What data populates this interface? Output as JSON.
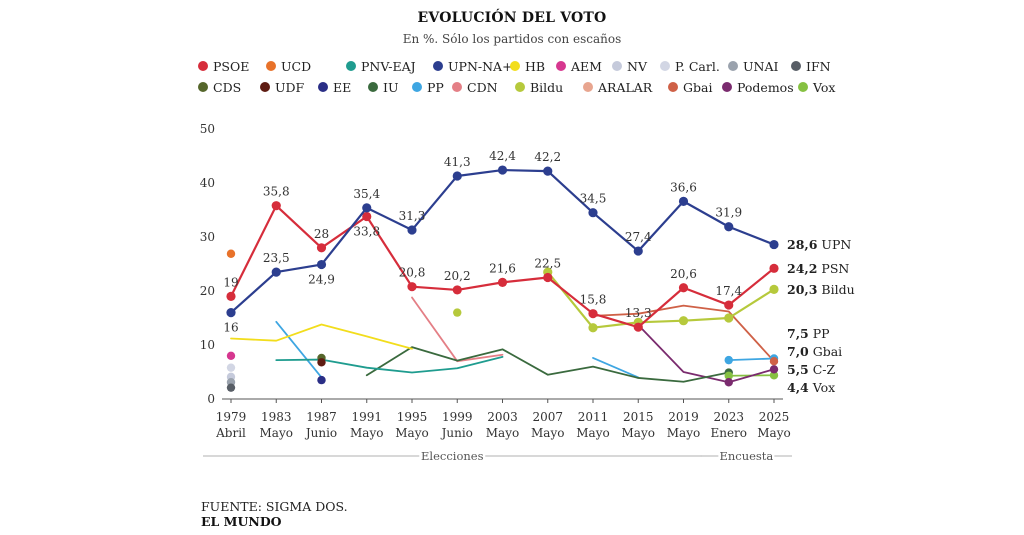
{
  "header": {
    "title": "EVOLUCIÓN DEL VOTO",
    "subtitle": "En %. Sólo los partidos con escaños"
  },
  "footer": {
    "source": "FUENTE: SIGMA DOS.",
    "brand": "EL MUNDO"
  },
  "legend": [
    [
      {
        "name": "PSOE",
        "color": "#d62d3b"
      },
      {
        "name": "UCD",
        "color": "#e8722a"
      },
      {
        "name": "PNV-EAJ",
        "color": "#1f9c8f"
      },
      {
        "name": "UPN-NA+",
        "color": "#2c3e8f"
      },
      {
        "name": "HB",
        "color": "#f2dd1c"
      },
      {
        "name": "AEM",
        "color": "#d6378f"
      },
      {
        "name": "NV",
        "color": "#c5cadb"
      },
      {
        "name": "P. Carl.",
        "color": "#d2d6e4"
      },
      {
        "name": "UNAI",
        "color": "#9aa2ad"
      },
      {
        "name": "IFN",
        "color": "#585e66"
      }
    ],
    [
      {
        "name": "CDS",
        "color": "#55662b"
      },
      {
        "name": "UDF",
        "color": "#5e1c12"
      },
      {
        "name": "EE",
        "color": "#2a2e86"
      },
      {
        "name": "IU",
        "color": "#3a6a3e"
      },
      {
        "name": "PP",
        "color": "#3ea6e2"
      },
      {
        "name": "CDN",
        "color": "#e47f86"
      },
      {
        "name": "Bildu",
        "color": "#b6c93c"
      },
      {
        "name": "ARALAR",
        "color": "#e8a58f"
      },
      {
        "name": "Gbai",
        "color": "#cf6147"
      },
      {
        "name": "Podemos",
        "color": "#7a2b6e"
      },
      {
        "name": "Vox",
        "color": "#86c142"
      }
    ]
  ],
  "chart_data": {
    "type": "line",
    "categories": [
      {
        "year": "1979",
        "label": "Abril"
      },
      {
        "year": "1983",
        "label": "Mayo"
      },
      {
        "year": "1987",
        "label": "Junio"
      },
      {
        "year": "1991",
        "label": "Mayo"
      },
      {
        "year": "1995",
        "label": "Mayo"
      },
      {
        "year": "1999",
        "label": "Junio"
      },
      {
        "year": "2003",
        "label": "Mayo"
      },
      {
        "year": "2007",
        "label": "Mayo"
      },
      {
        "year": "2011",
        "label": "Mayo"
      },
      {
        "year": "2015",
        "label": "Mayo"
      },
      {
        "year": "2019",
        "label": "Mayo"
      },
      {
        "year": "2023",
        "label": "Enero"
      },
      {
        "year": "2025",
        "label": "Mayo"
      }
    ],
    "y_range": [
      0,
      50
    ],
    "y_ticks": [
      "0",
      "10",
      "20",
      "30",
      "40",
      "50"
    ],
    "grid": false,
    "groups": [
      {
        "label": "Elecciones",
        "from": 0,
        "to": 10
      },
      {
        "label": "Encuesta",
        "from": 11,
        "to": 12
      }
    ],
    "series": [
      {
        "name": "UPN-NA+",
        "color": "#2c3e8f",
        "markers": true,
        "values": [
          16,
          23.5,
          24.9,
          35.4,
          31.3,
          41.3,
          42.4,
          42.2,
          34.5,
          27.4,
          36.6,
          31.9,
          28.6
        ]
      },
      {
        "name": "PSOE",
        "color": "#d62d3b",
        "markers": true,
        "values": [
          19,
          35.8,
          28,
          33.8,
          20.8,
          20.2,
          21.6,
          22.5,
          15.8,
          13.3,
          20.6,
          17.4,
          24.2
        ]
      },
      {
        "name": "Bildu",
        "color": "#b6c93c",
        "markers": true,
        "values": [
          null,
          null,
          null,
          null,
          null,
          null,
          null,
          23.5,
          13.2,
          14.2,
          14.5,
          15.0,
          20.3
        ]
      },
      {
        "name": "Gbai",
        "color": "#cf6147",
        "markers": false,
        "values": [
          null,
          null,
          null,
          null,
          null,
          null,
          null,
          null,
          15.4,
          15.8,
          17.3,
          16.2,
          7.0
        ]
      },
      {
        "name": "HB",
        "color": "#f2dd1c",
        "markers": false,
        "values": [
          11.2,
          10.8,
          13.8,
          11.6,
          9.3,
          null,
          null,
          null,
          null,
          null,
          null,
          null,
          null
        ]
      },
      {
        "name": "PNV-EAJ",
        "color": "#1f9c8f",
        "markers": false,
        "values": [
          null,
          7.2,
          7.3,
          5.8,
          4.9,
          5.7,
          7.8,
          null,
          null,
          null,
          null,
          null,
          null
        ]
      },
      {
        "name": "IU",
        "color": "#3a6a3e",
        "markers": false,
        "values": [
          null,
          null,
          null,
          4.4,
          9.6,
          7.1,
          9.2,
          4.5,
          6.0,
          3.9,
          3.2,
          4.9,
          null
        ]
      },
      {
        "name": "CDN",
        "color": "#e47f86",
        "markers": false,
        "values": [
          null,
          null,
          null,
          null,
          18.8,
          7.0,
          8.2,
          null,
          null,
          null,
          null,
          null,
          null
        ]
      },
      {
        "name": "PP",
        "color": "#3ea6e2",
        "markers": false,
        "values": [
          null,
          14.3,
          4.0,
          null,
          null,
          null,
          null,
          null,
          7.6,
          4.0,
          null,
          7.2,
          7.5
        ]
      },
      {
        "name": "Podemos",
        "color": "#7a2b6e",
        "markers": false,
        "values": [
          null,
          null,
          null,
          null,
          null,
          null,
          null,
          null,
          null,
          13.7,
          5.0,
          3.1,
          5.5
        ]
      },
      {
        "name": "Vox",
        "color": "#86c142",
        "markers": false,
        "values": [
          null,
          null,
          null,
          null,
          null,
          null,
          null,
          null,
          null,
          null,
          null,
          4.3,
          4.4
        ]
      }
    ],
    "single_points": [
      {
        "name": "UCD",
        "color": "#e8722a",
        "cat": 0,
        "value": 26.9
      },
      {
        "name": "AEM",
        "color": "#d6378f",
        "cat": 0,
        "value": 8.0
      },
      {
        "name": "P. Carl.",
        "color": "#d2d6e4",
        "cat": 0,
        "value": 5.8
      },
      {
        "name": "NV",
        "color": "#c5cadb",
        "cat": 0,
        "value": 4.1
      },
      {
        "name": "UNAI",
        "color": "#9aa2ad",
        "cat": 0,
        "value": 3.1
      },
      {
        "name": "IFN",
        "color": "#585e66",
        "cat": 0,
        "value": 2.1
      },
      {
        "name": "CDS",
        "color": "#55662b",
        "cat": 2,
        "value": 7.6
      },
      {
        "name": "UDF",
        "color": "#5e1c12",
        "cat": 2,
        "value": 6.8
      },
      {
        "name": "EE",
        "color": "#2a2e86",
        "cat": 2,
        "value": 3.5
      },
      {
        "name": "ARALAR",
        "color": "#b6c93c",
        "cat": 5,
        "value": 16.0
      },
      {
        "name": "PP",
        "color": "#3ea6e2",
        "cat": 11,
        "value": 7.2
      },
      {
        "name": "PP",
        "color": "#3ea6e2",
        "cat": 12,
        "value": 7.5
      },
      {
        "name": "IU",
        "color": "#3a6a3e",
        "cat": 11,
        "value": 4.9
      },
      {
        "name": "Vox",
        "color": "#86c142",
        "cat": 11,
        "value": 4.3
      },
      {
        "name": "Vox",
        "color": "#86c142",
        "cat": 12,
        "value": 4.4
      },
      {
        "name": "Podemos",
        "color": "#7a2b6e",
        "cat": 11,
        "value": 3.1
      },
      {
        "name": "Podemos",
        "color": "#7a2b6e",
        "cat": 12,
        "value": 5.5
      },
      {
        "name": "Gbai",
        "color": "#cf6147",
        "cat": 12,
        "value": 7.0
      }
    ],
    "data_labels": [
      {
        "series": "PSOE",
        "cat": 0,
        "text": "19",
        "pos": "above"
      },
      {
        "series": "PSOE",
        "cat": 1,
        "text": "35,8",
        "pos": "above"
      },
      {
        "series": "PSOE",
        "cat": 2,
        "text": "28",
        "pos": "above"
      },
      {
        "series": "PSOE",
        "cat": 3,
        "text": "33,8",
        "pos": "below"
      },
      {
        "series": "PSOE",
        "cat": 4,
        "text": "20,8",
        "pos": "above"
      },
      {
        "series": "PSOE",
        "cat": 5,
        "text": "20,2",
        "pos": "above"
      },
      {
        "series": "PSOE",
        "cat": 6,
        "text": "21,6",
        "pos": "above"
      },
      {
        "series": "PSOE",
        "cat": 7,
        "text": "22,5",
        "pos": "above"
      },
      {
        "series": "PSOE",
        "cat": 8,
        "text": "15,8",
        "pos": "above"
      },
      {
        "series": "PSOE",
        "cat": 9,
        "text": "13,3",
        "pos": "above"
      },
      {
        "series": "PSOE",
        "cat": 10,
        "text": "20,6",
        "pos": "above"
      },
      {
        "series": "PSOE",
        "cat": 11,
        "text": "17,4",
        "pos": "above"
      },
      {
        "series": "UPN-NA+",
        "cat": 0,
        "text": "16",
        "pos": "below"
      },
      {
        "series": "UPN-NA+",
        "cat": 1,
        "text": "23,5",
        "pos": "above"
      },
      {
        "series": "UPN-NA+",
        "cat": 2,
        "text": "24,9",
        "pos": "below"
      },
      {
        "series": "UPN-NA+",
        "cat": 3,
        "text": "35,4",
        "pos": "above"
      },
      {
        "series": "UPN-NA+",
        "cat": 4,
        "text": "31,3",
        "pos": "above"
      },
      {
        "series": "UPN-NA+",
        "cat": 5,
        "text": "41,3",
        "pos": "above"
      },
      {
        "series": "UPN-NA+",
        "cat": 6,
        "text": "42,4",
        "pos": "above"
      },
      {
        "series": "UPN-NA+",
        "cat": 7,
        "text": "42,2",
        "pos": "above"
      },
      {
        "series": "UPN-NA+",
        "cat": 8,
        "text": "34,5",
        "pos": "above"
      },
      {
        "series": "UPN-NA+",
        "cat": 9,
        "text": "27,4",
        "pos": "above"
      },
      {
        "series": "UPN-NA+",
        "cat": 10,
        "text": "36,6",
        "pos": "above"
      },
      {
        "series": "UPN-NA+",
        "cat": 11,
        "text": "31,9",
        "pos": "above"
      }
    ],
    "end_labels": [
      {
        "value_text": "28,6",
        "name": "UPN",
        "value": 28.6
      },
      {
        "value_text": "24,2",
        "name": "PSN",
        "value": 24.2
      },
      {
        "value_text": "20,3",
        "name": "Bildu",
        "value": 20.3
      },
      {
        "value_text": "7,5",
        "name": "PP",
        "value": 7.5
      },
      {
        "value_text": "7,0",
        "name": "Gbai",
        "value": 7.0
      },
      {
        "value_text": "5,5",
        "name": "C-Z",
        "value": 5.5
      },
      {
        "value_text": "4,4",
        "name": "Vox",
        "value": 4.4
      }
    ]
  }
}
